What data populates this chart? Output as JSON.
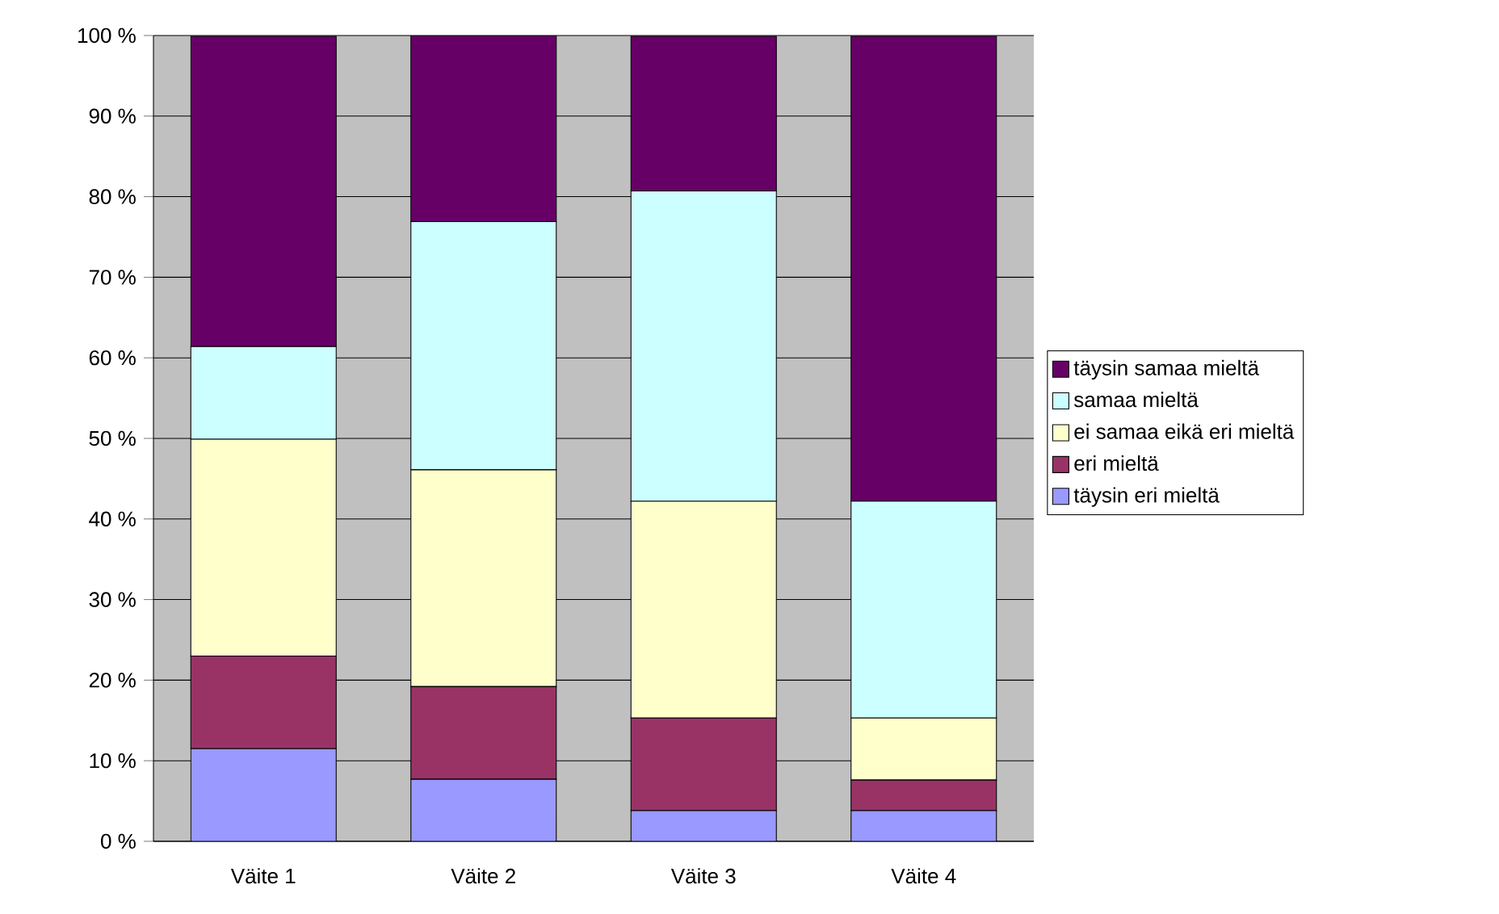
{
  "chart_data": {
    "type": "bar",
    "stacked": true,
    "categories": [
      "Väite 1",
      "Väite 2",
      "Väite 3",
      "Väite 4"
    ],
    "series": [
      {
        "name": "täysin eri mieltä",
        "color": "#9999ff",
        "values": [
          11.5,
          7.7,
          3.8,
          3.8
        ]
      },
      {
        "name": "eri mieltä",
        "color": "#993366",
        "values": [
          11.5,
          11.5,
          11.5,
          3.8
        ]
      },
      {
        "name": "ei samaa eikä eri mieltä",
        "color": "#ffffcc",
        "values": [
          26.9,
          26.9,
          26.9,
          7.7
        ]
      },
      {
        "name": "samaa mieltä",
        "color": "#ccffff",
        "values": [
          11.5,
          30.8,
          38.5,
          26.9
        ]
      },
      {
        "name": "täysin samaa mieltä",
        "color": "#660066",
        "values": [
          38.5,
          23.1,
          19.2,
          57.7
        ]
      }
    ],
    "ylim": [
      0,
      100
    ],
    "yticks": [
      {
        "value": 0,
        "label": "0 %"
      },
      {
        "value": 10,
        "label": "10 %"
      },
      {
        "value": 20,
        "label": "20 %"
      },
      {
        "value": 30,
        "label": "30 %"
      },
      {
        "value": 40,
        "label": "40 %"
      },
      {
        "value": 50,
        "label": "50 %"
      },
      {
        "value": 60,
        "label": "60 %"
      },
      {
        "value": 70,
        "label": "70 %"
      },
      {
        "value": 80,
        "label": "80 %"
      },
      {
        "value": 90,
        "label": "90 %"
      },
      {
        "value": 100,
        "label": "100 %"
      }
    ],
    "grid": "y",
    "legend": "right"
  }
}
